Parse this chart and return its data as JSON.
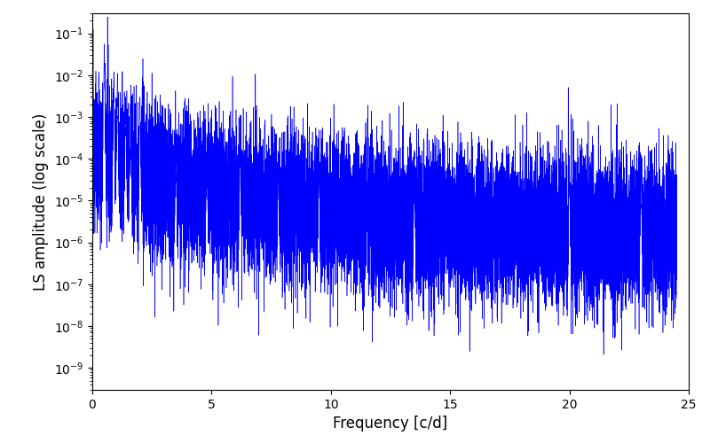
{
  "title": "",
  "xlabel": "Frequency [c/d]",
  "ylabel": "LS amplitude (log scale)",
  "xlim": [
    0,
    25
  ],
  "ylim": [
    3e-10,
    0.3
  ],
  "yscale": "log",
  "line_color": "blue",
  "line_width": 0.4,
  "background_color": "#ffffff",
  "n_points": 15000,
  "seed": 12345,
  "freq_max": 24.5,
  "base_amplitude": 0.0002,
  "noise_sigma": 2.0,
  "power_law": 1.5,
  "figsize": [
    8.0,
    5.0
  ],
  "dpi": 100
}
